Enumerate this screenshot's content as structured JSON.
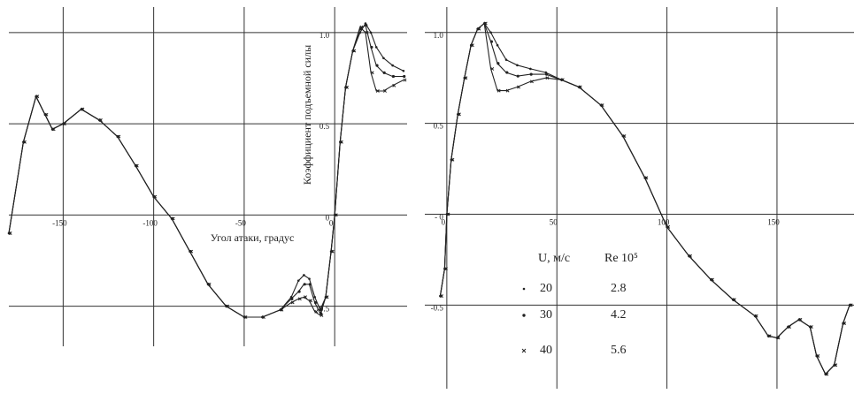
{
  "chart_data": [
    {
      "type": "line",
      "y_label": "Коэффициент подъемной силы",
      "x_label": "Угол атаки, градус",
      "xlim": [
        -180,
        40
      ],
      "ylim": [
        -0.72,
        1.14
      ],
      "xticks": [
        -150,
        -100,
        -50,
        0
      ],
      "yticks": [
        {
          "value": 1,
          "label": "1.0"
        },
        0.5,
        0,
        -0.5
      ],
      "grid": true,
      "x": [
        -180,
        -172,
        -165,
        -160,
        -156,
        -150,
        -140,
        -130,
        -120,
        -110,
        -100,
        -90,
        -80,
        -70,
        -60,
        -50,
        -40,
        -30,
        -24,
        -20,
        -17,
        -14,
        -11,
        -8,
        -5,
        -2,
        0,
        3,
        6,
        10,
        14,
        17,
        20,
        23,
        27,
        32,
        38
      ],
      "series": [
        {
          "color": "#222",
          "marker": "dot",
          "values": [
            -0.1,
            0.4,
            0.65,
            0.55,
            0.47,
            0.5,
            0.58,
            0.52,
            0.43,
            0.27,
            0.1,
            -0.02,
            -0.2,
            -0.38,
            -0.5,
            -0.56,
            -0.56,
            -0.52,
            -0.45,
            -0.36,
            -0.33,
            -0.35,
            -0.45,
            -0.52,
            -0.45,
            -0.2,
            0,
            0.4,
            0.7,
            0.9,
            1.0,
            1.05,
            1.0,
            0.92,
            0.86,
            0.82,
            0.79
          ]
        },
        {
          "color": "#222",
          "marker": "dot",
          "values": [
            -0.1,
            0.4,
            0.65,
            0.55,
            0.47,
            0.5,
            0.58,
            0.52,
            0.43,
            0.27,
            0.1,
            -0.02,
            -0.2,
            -0.38,
            -0.5,
            -0.56,
            -0.56,
            -0.52,
            -0.46,
            -0.42,
            -0.38,
            -0.38,
            -0.48,
            -0.54,
            -0.45,
            -0.2,
            0,
            0.4,
            0.7,
            0.9,
            1.02,
            1.04,
            0.92,
            0.82,
            0.78,
            0.76,
            0.76
          ]
        },
        {
          "color": "#222",
          "marker": "cross",
          "values": [
            -0.1,
            0.4,
            0.65,
            0.55,
            0.47,
            0.5,
            0.58,
            0.52,
            0.43,
            0.27,
            0.1,
            -0.02,
            -0.2,
            -0.38,
            -0.5,
            -0.56,
            -0.56,
            -0.52,
            -0.48,
            -0.46,
            -0.45,
            -0.47,
            -0.53,
            -0.55,
            -0.45,
            -0.2,
            0,
            0.4,
            0.7,
            0.9,
            1.03,
            1.0,
            0.78,
            0.68,
            0.68,
            0.71,
            0.74
          ]
        }
      ]
    },
    {
      "type": "line",
      "xlim": [
        -10,
        185
      ],
      "ylim": [
        -0.96,
        1.14
      ],
      "xticks": [
        0,
        50,
        100,
        150
      ],
      "yticks": [
        {
          "value": 1,
          "label": "1.0"
        },
        0.5,
        {
          "value": 0,
          "label": "- 0"
        },
        -0.5
      ],
      "grid": true,
      "legend_headers": [
        "U, м/с",
        "Re 10⁵"
      ],
      "x": [
        -3,
        -1,
        0,
        2,
        5,
        8,
        11,
        14,
        17,
        20,
        23,
        27,
        32,
        38,
        45,
        52,
        60,
        70,
        80,
        90,
        100,
        110,
        120,
        130,
        140,
        146,
        150,
        155,
        160,
        165,
        168,
        172,
        176,
        180,
        183
      ],
      "series": [
        {
          "name": "20",
          "re": 2.8,
          "color": "#222",
          "marker": "dot",
          "values": [
            -0.45,
            -0.3,
            0,
            0.3,
            0.55,
            0.75,
            0.93,
            1.02,
            1.05,
            1.0,
            0.93,
            0.85,
            0.82,
            0.8,
            0.78,
            0.74,
            0.7,
            0.6,
            0.43,
            0.2,
            -0.07,
            -0.23,
            -0.36,
            -0.47,
            -0.56,
            -0.67,
            -0.68,
            -0.62,
            -0.58,
            -0.62,
            -0.78,
            -0.88,
            -0.83,
            -0.6,
            -0.5
          ]
        },
        {
          "name": "30",
          "re": 4.2,
          "color": "#222",
          "marker": "dot",
          "values": [
            -0.45,
            -0.3,
            0,
            0.3,
            0.55,
            0.75,
            0.93,
            1.02,
            1.05,
            0.95,
            0.83,
            0.78,
            0.76,
            0.77,
            0.77,
            0.74,
            0.7,
            0.6,
            0.43,
            0.2,
            -0.07,
            -0.23,
            -0.36,
            -0.47,
            -0.56,
            -0.67,
            -0.68,
            -0.62,
            -0.58,
            -0.62,
            -0.78,
            -0.88,
            -0.83,
            -0.6,
            -0.5
          ]
        },
        {
          "name": "40",
          "re": 5.6,
          "color": "#222",
          "marker": "cross",
          "values": [
            -0.45,
            -0.3,
            0,
            0.3,
            0.55,
            0.75,
            0.93,
            1.02,
            1.05,
            0.8,
            0.68,
            0.68,
            0.7,
            0.73,
            0.75,
            0.74,
            0.7,
            0.6,
            0.43,
            0.2,
            -0.07,
            -0.23,
            -0.36,
            -0.47,
            -0.56,
            -0.67,
            -0.68,
            -0.62,
            -0.58,
            -0.62,
            -0.78,
            -0.88,
            -0.83,
            -0.6,
            -0.5
          ]
        }
      ]
    }
  ]
}
